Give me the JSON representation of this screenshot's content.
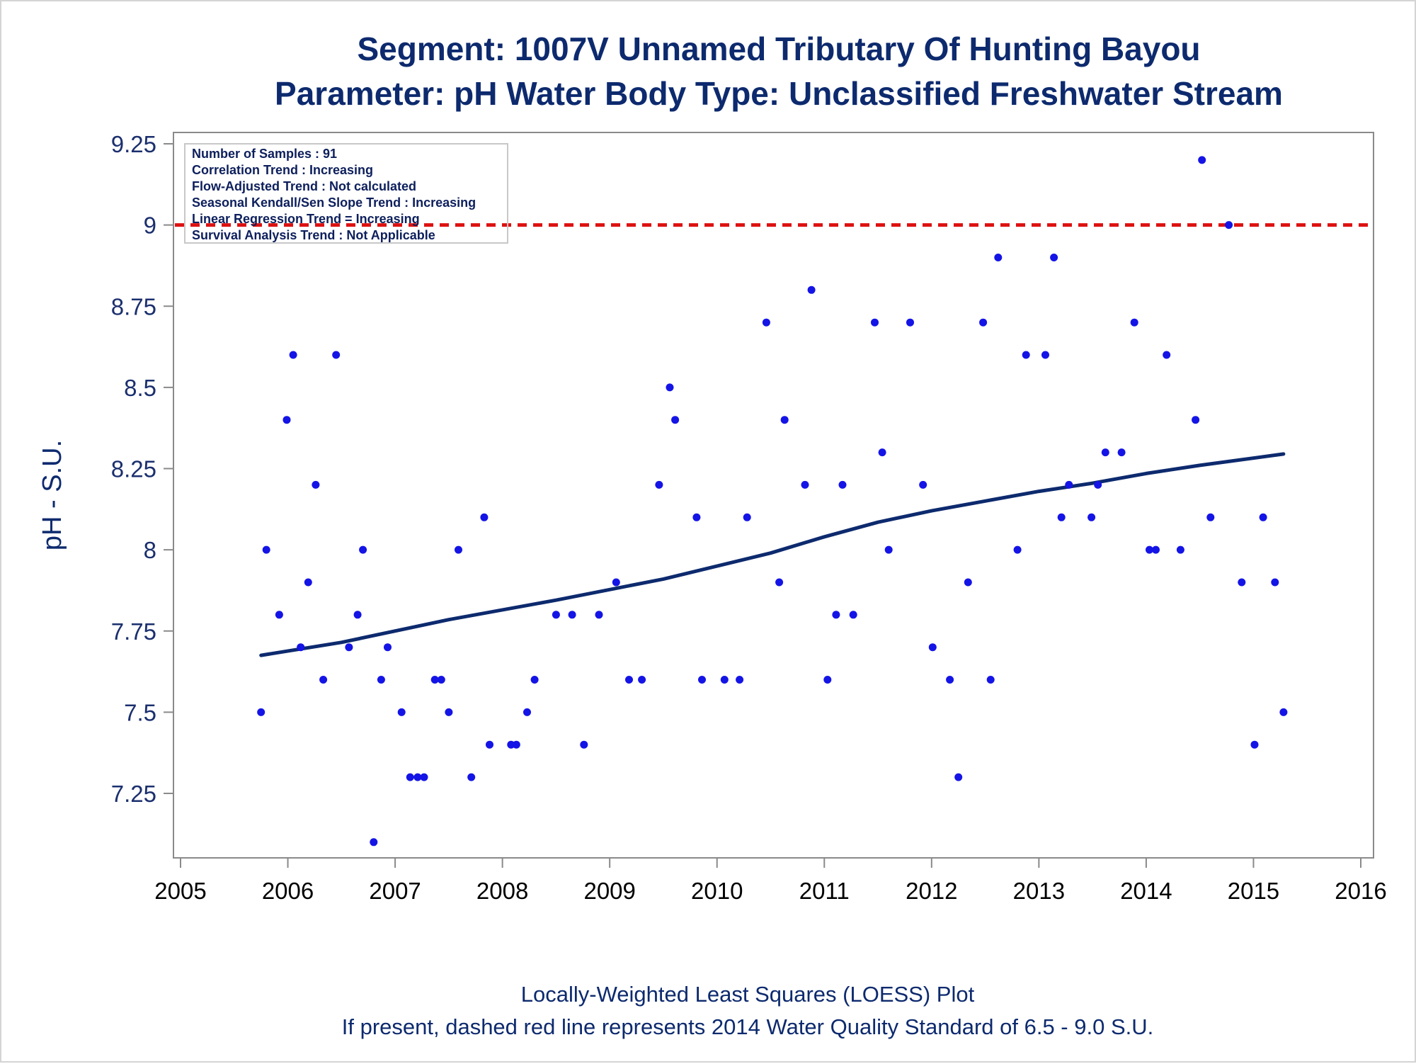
{
  "chart_data": {
    "type": "scatter",
    "title": "Segment: 1007V  Unnamed Tributary Of Hunting Bayou",
    "subtitle": "Parameter: pH   Water Body Type: Unclassified Freshwater Stream",
    "xlabel": "",
    "ylabel": "pH - S.U.",
    "xlim": [
      2005,
      2016
    ],
    "ylim": [
      7.1,
      9.33
    ],
    "x_ticks": [
      "2005",
      "2006",
      "2007",
      "2008",
      "2009",
      "2010",
      "2011",
      "2012",
      "2013",
      "2014",
      "2015",
      "2016"
    ],
    "y_ticks": [
      "7.25",
      "7.5",
      "7.75",
      "8",
      "8.25",
      "8.5",
      "8.75",
      "9",
      "9.25"
    ],
    "legend_box": [
      "Number of Samples : 91",
      "Correlation Trend : Increasing",
      "Flow-Adjusted Trend : Not calculated",
      "Seasonal Kendall/Sen Slope Trend : Increasing",
      "Linear Regression Trend = Increasing",
      "Survival Analysis Trend : Not Applicable"
    ],
    "legend_position": "top-left",
    "reference_line": {
      "y": 9.0,
      "style": "dashed",
      "color": "#dd1111"
    },
    "points_color": "#1414e6",
    "trend_color": "#0d2a6e",
    "points": [
      [
        2005.75,
        7.5
      ],
      [
        2005.8,
        8.0
      ],
      [
        2005.92,
        7.8
      ],
      [
        2005.99,
        8.4
      ],
      [
        2006.05,
        8.6
      ],
      [
        2006.12,
        7.7
      ],
      [
        2006.19,
        7.9
      ],
      [
        2006.26,
        8.2
      ],
      [
        2006.33,
        7.6
      ],
      [
        2006.45,
        8.6
      ],
      [
        2006.57,
        7.7
      ],
      [
        2006.65,
        7.8
      ],
      [
        2006.7,
        8.0
      ],
      [
        2006.8,
        7.1
      ],
      [
        2006.87,
        7.6
      ],
      [
        2006.93,
        7.7
      ],
      [
        2007.06,
        7.5
      ],
      [
        2007.14,
        7.3
      ],
      [
        2007.21,
        7.3
      ],
      [
        2007.27,
        7.3
      ],
      [
        2007.37,
        7.6
      ],
      [
        2007.43,
        7.6
      ],
      [
        2007.5,
        7.5
      ],
      [
        2007.59,
        8.0
      ],
      [
        2007.71,
        7.3
      ],
      [
        2007.83,
        8.1
      ],
      [
        2007.88,
        7.4
      ],
      [
        2008.08,
        7.4
      ],
      [
        2008.13,
        7.4
      ],
      [
        2008.23,
        7.5
      ],
      [
        2008.3,
        7.6
      ],
      [
        2008.5,
        7.8
      ],
      [
        2008.65,
        7.8
      ],
      [
        2008.76,
        7.4
      ],
      [
        2008.9,
        7.8
      ],
      [
        2009.06,
        7.9
      ],
      [
        2009.18,
        7.6
      ],
      [
        2009.3,
        7.6
      ],
      [
        2009.46,
        8.2
      ],
      [
        2009.56,
        8.5
      ],
      [
        2009.61,
        8.4
      ],
      [
        2009.81,
        8.1
      ],
      [
        2009.86,
        7.6
      ],
      [
        2010.07,
        7.6
      ],
      [
        2010.21,
        7.6
      ],
      [
        2010.28,
        8.1
      ],
      [
        2010.46,
        8.7
      ],
      [
        2010.58,
        7.9
      ],
      [
        2010.63,
        8.4
      ],
      [
        2010.82,
        8.2
      ],
      [
        2010.88,
        8.8
      ],
      [
        2011.03,
        7.6
      ],
      [
        2011.11,
        7.8
      ],
      [
        2011.17,
        8.2
      ],
      [
        2011.27,
        7.8
      ],
      [
        2011.47,
        8.7
      ],
      [
        2011.54,
        8.3
      ],
      [
        2011.6,
        8.0
      ],
      [
        2011.8,
        8.7
      ],
      [
        2011.92,
        8.2
      ],
      [
        2012.01,
        7.7
      ],
      [
        2012.17,
        7.6
      ],
      [
        2012.25,
        7.3
      ],
      [
        2012.34,
        7.9
      ],
      [
        2012.48,
        8.7
      ],
      [
        2012.55,
        7.6
      ],
      [
        2012.62,
        8.9
      ],
      [
        2012.8,
        8.0
      ],
      [
        2012.88,
        8.6
      ],
      [
        2013.06,
        8.6
      ],
      [
        2013.14,
        8.9
      ],
      [
        2013.21,
        8.1
      ],
      [
        2013.28,
        8.2
      ],
      [
        2013.49,
        8.1
      ],
      [
        2013.55,
        8.2
      ],
      [
        2013.62,
        8.3
      ],
      [
        2013.77,
        8.3
      ],
      [
        2013.89,
        8.7
      ],
      [
        2014.03,
        8.0
      ],
      [
        2014.09,
        8.0
      ],
      [
        2014.19,
        8.6
      ],
      [
        2014.32,
        8.0
      ],
      [
        2014.46,
        8.4
      ],
      [
        2014.52,
        9.2
      ],
      [
        2014.6,
        8.1
      ],
      [
        2014.77,
        9.0
      ],
      [
        2014.89,
        7.9
      ],
      [
        2015.01,
        7.4
      ],
      [
        2015.09,
        8.1
      ],
      [
        2015.2,
        7.9
      ],
      [
        2015.28,
        7.5
      ]
    ],
    "trend": {
      "name": "",
      "x": [
        2005.75,
        2006.5,
        2007.5,
        2008.5,
        2009.5,
        2010.5,
        2011.0,
        2011.5,
        2012.0,
        2012.5,
        2013.0,
        2013.5,
        2014.0,
        2014.5,
        2015.28
      ],
      "y": [
        7.675,
        7.715,
        7.785,
        7.845,
        7.91,
        7.99,
        8.04,
        8.085,
        8.12,
        8.15,
        8.18,
        8.205,
        8.235,
        8.26,
        8.295
      ]
    }
  },
  "footnotes": [
    "Locally-Weighted Least Squares (LOESS) Plot",
    "If present, dashed red line represents 2014 Water Quality Standard of 6.5 - 9.0 S.U."
  ]
}
